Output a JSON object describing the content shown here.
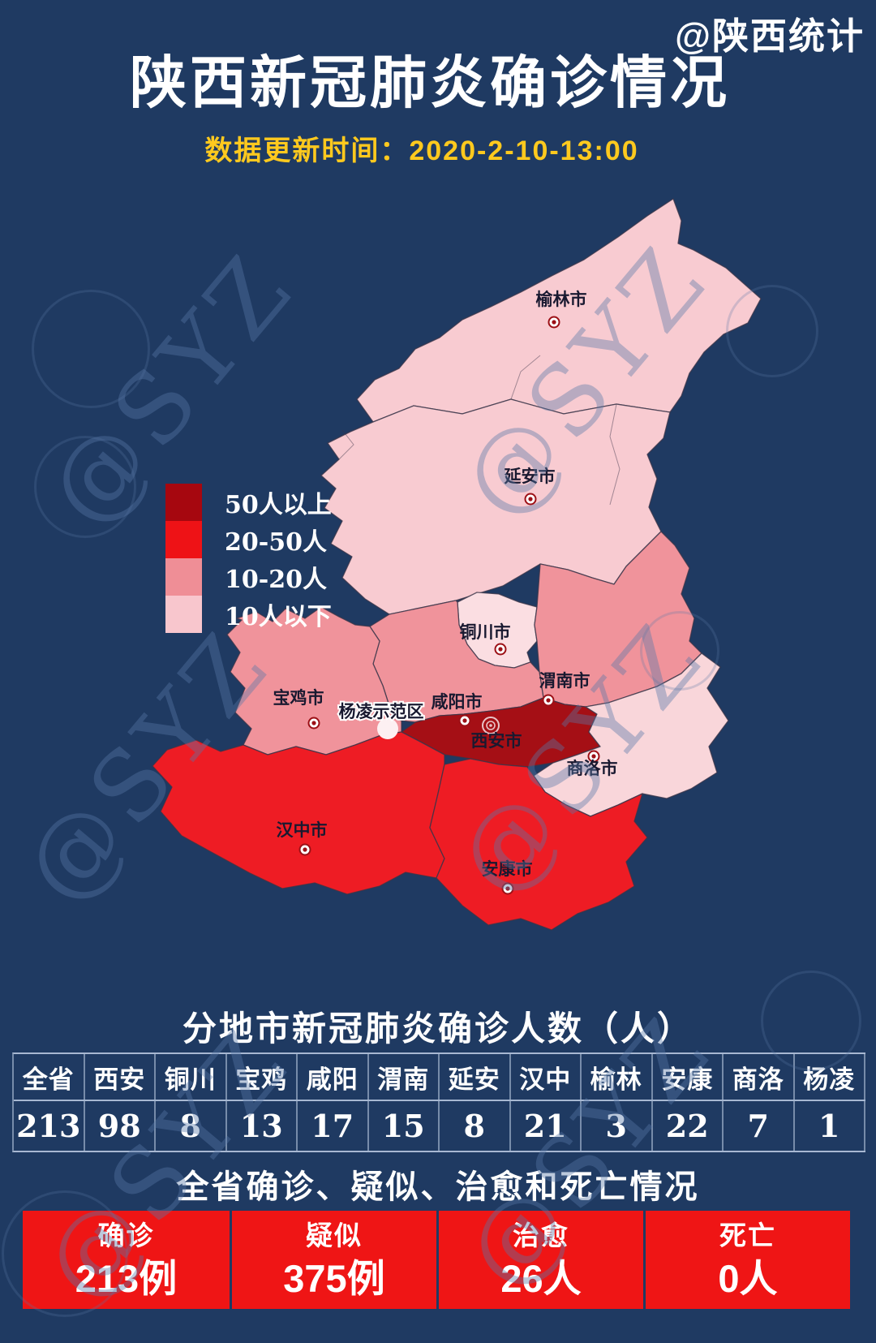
{
  "account_watermark": "@陕西统计",
  "background_watermark_text": "@SYZ",
  "header": {
    "title": "陕西新冠肺炎确诊情况",
    "update_time_label": "数据更新时间：2020-2-10-13:00"
  },
  "colors": {
    "background": "#1f3a62",
    "level_50_plus": "#a50f15",
    "level_20_50": "#ee1c24",
    "level_10_20": "#f0939b",
    "level_below_10": "#f8c6cd",
    "accent_gold": "#ffc91e",
    "summary_band_red": "#ef1515"
  },
  "legend": {
    "items": [
      {
        "label": "50人以上",
        "color": "#a6070f"
      },
      {
        "label": "20-50人",
        "color": "#ee1216"
      },
      {
        "label": "10-20人",
        "color": "#ef8e96"
      },
      {
        "label": "10人以下",
        "color": "#f8c6cd"
      }
    ]
  },
  "map": {
    "regions": [
      {
        "name": "榆林市",
        "cases": 3,
        "level": "10人以下"
      },
      {
        "name": "延安市",
        "cases": 8,
        "level": "10人以下"
      },
      {
        "name": "铜川市",
        "cases": 8,
        "level": "10人以下"
      },
      {
        "name": "渭南市",
        "cases": 15,
        "level": "10-20人"
      },
      {
        "name": "咸阳市",
        "cases": 17,
        "level": "10-20人"
      },
      {
        "name": "宝鸡市",
        "cases": 13,
        "level": "10-20人"
      },
      {
        "name": "西安市",
        "cases": 98,
        "level": "50人以上"
      },
      {
        "name": "商洛市",
        "cases": 7,
        "level": "10人以下"
      },
      {
        "name": "汉中市",
        "cases": 21,
        "level": "20-50人"
      },
      {
        "name": "安康市",
        "cases": 22,
        "level": "20-50人"
      },
      {
        "name": "杨凌示范区",
        "cases": 1,
        "level": "10人以下"
      }
    ]
  },
  "table": {
    "title": "分地市新冠肺炎确诊人数（人）",
    "columns": [
      "全省",
      "西安",
      "铜川",
      "宝鸡",
      "咸阳",
      "渭南",
      "延安",
      "汉中",
      "榆林",
      "安康",
      "商洛",
      "杨凌"
    ],
    "values": [
      "213",
      "98",
      "8",
      "13",
      "17",
      "15",
      "8",
      "21",
      "3",
      "22",
      "7",
      "1"
    ]
  },
  "summary": {
    "title": "全省确诊、疑似、治愈和死亡情况",
    "cards": [
      {
        "label": "确诊",
        "value": "213例"
      },
      {
        "label": "疑似",
        "value": "375例"
      },
      {
        "label": "治愈",
        "value": "26人"
      },
      {
        "label": "死亡",
        "value": "0人"
      }
    ]
  },
  "chart_data": {
    "type": "heatmap",
    "title": "分地市新冠肺炎确诊人数（人）",
    "categories": [
      "全省",
      "西安",
      "铜川",
      "宝鸡",
      "咸阳",
      "渭南",
      "延安",
      "汉中",
      "榆林",
      "安康",
      "商洛",
      "杨凌"
    ],
    "values": [
      213,
      98,
      8,
      13,
      17,
      15,
      8,
      21,
      3,
      22,
      7,
      1
    ],
    "legend_bins": [
      "50人以上",
      "20-50人",
      "10-20人",
      "10人以下"
    ],
    "legend_position": "middle-left"
  }
}
